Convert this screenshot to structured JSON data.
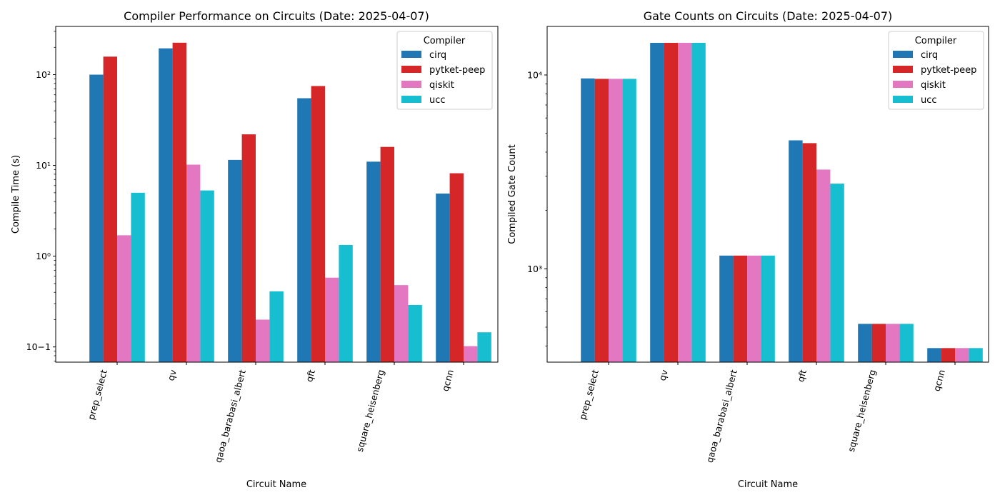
{
  "chart_data": [
    {
      "type": "bar",
      "title": "Compiler Performance on Circuits (Date: 2025-04-07)",
      "xlabel": "Circuit Name",
      "ylabel": "Compile Time (s)",
      "yscale": "log",
      "ylim": [
        0.068,
        340
      ],
      "yticks": [
        0.1,
        1,
        10,
        100
      ],
      "ytick_labels": [
        "10−1",
        "10⁰",
        "10¹",
        "10²"
      ],
      "categories": [
        "prep_select",
        "qv",
        "qaoa_barabasi_albert",
        "qft",
        "square_heisenberg",
        "qcnn"
      ],
      "series": [
        {
          "name": "cirq",
          "values": [
            100,
            195,
            11.5,
            55,
            11,
            4.9
          ]
        },
        {
          "name": "pytket-peep",
          "values": [
            158,
            225,
            22,
            75,
            16,
            8.2
          ]
        },
        {
          "name": "qiskit",
          "values": [
            1.7,
            10.2,
            0.2,
            0.58,
            0.48,
            0.102
          ]
        },
        {
          "name": "ucc",
          "values": [
            5.0,
            5.3,
            0.41,
            1.33,
            0.29,
            0.145
          ]
        }
      ],
      "legend": {
        "title": "Compiler",
        "placement": "upper right"
      },
      "grid": false
    },
    {
      "type": "bar",
      "title": "Gate Counts on Circuits (Date: 2025-04-07)",
      "xlabel": "Circuit Name",
      "ylabel": "Compiled Gate Count",
      "yscale": "log",
      "ylim": [
        330,
        17800
      ],
      "yticks": [
        1000,
        10000
      ],
      "ytick_labels": [
        "10³",
        "10⁴"
      ],
      "categories": [
        "prep_select",
        "qv",
        "qaoa_barabasi_albert",
        "qft",
        "square_heisenberg",
        "qcnn"
      ],
      "series": [
        {
          "name": "cirq",
          "values": [
            9600,
            14650,
            1170,
            4600,
            520,
            390
          ]
        },
        {
          "name": "pytket-peep",
          "values": [
            9550,
            14650,
            1170,
            4450,
            520,
            390
          ]
        },
        {
          "name": "qiskit",
          "values": [
            9550,
            14650,
            1170,
            3250,
            520,
            390
          ]
        },
        {
          "name": "ucc",
          "values": [
            9550,
            14650,
            1170,
            2750,
            520,
            390
          ]
        }
      ],
      "legend": {
        "title": "Compiler",
        "placement": "upper right"
      },
      "grid": false
    }
  ],
  "colors": {
    "cirq": "#1f77b4",
    "pytket-peep": "#d62728",
    "qiskit": "#e377c2",
    "ucc": "#17becf"
  }
}
